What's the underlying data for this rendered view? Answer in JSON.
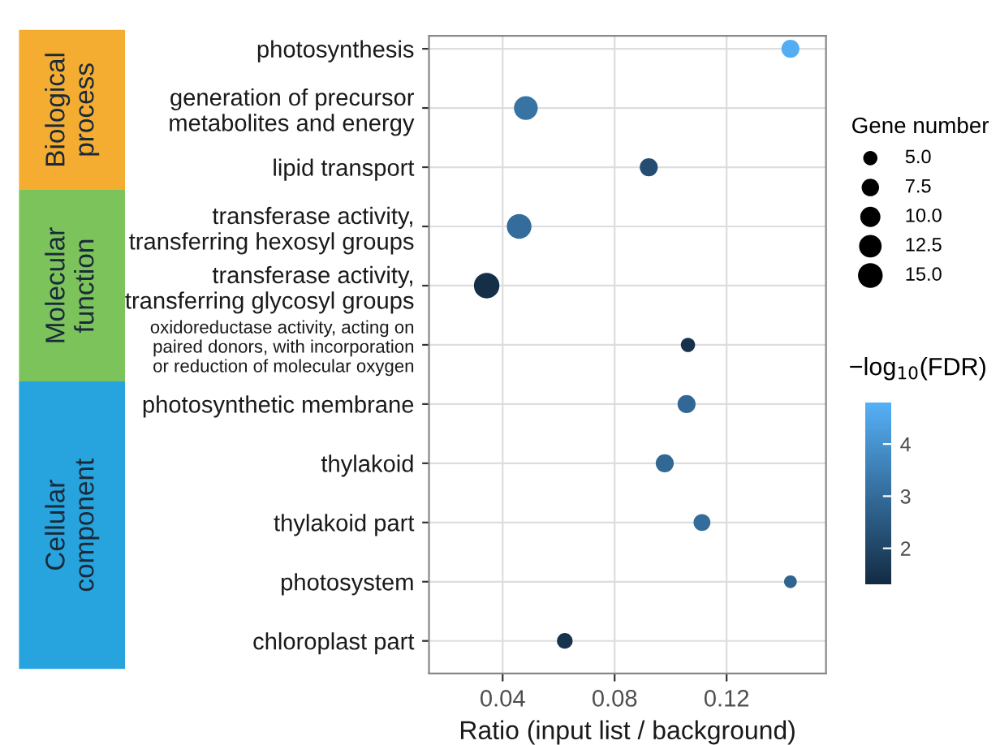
{
  "chart_data": {
    "type": "bubble",
    "orientation": "horizontal",
    "categories": [
      "photosynthesis",
      "generation of precursor\nmetabolites and energy",
      "lipid transport",
      "transferase activity,\ntransferring hexosyl groups",
      "transferase activity,\ntransferring glycosyl groups",
      "oxidoreductase activity, acting on\npaired donors, with incorporation\nor reduction of molecular oxygen",
      "photosynthetic membrane",
      "thylakoid",
      "thylakoid part",
      "photosystem",
      "chloroplast part"
    ],
    "values": [
      0.1428,
      0.0483,
      0.0922,
      0.0459,
      0.0343,
      0.1062,
      0.1057,
      0.0979,
      0.1112,
      0.1428,
      0.0622
    ],
    "sizes": [
      8,
      14,
      8,
      15,
      16,
      5,
      8,
      8,
      7,
      4,
      6
    ],
    "cvalues": [
      4.7,
      3.2,
      2.2,
      3.0,
      1.4,
      1.5,
      2.9,
      2.9,
      3.0,
      2.8,
      1.5
    ],
    "size_legend": [
      {
        "value": 5,
        "label": "5.0"
      },
      {
        "value": 7.5,
        "label": "7.5"
      },
      {
        "value": 10,
        "label": "10.0"
      },
      {
        "value": 12.5,
        "label": "12.5"
      },
      {
        "value": 15,
        "label": "15.0"
      }
    ],
    "legend_title": "Gene number",
    "clabel": "−log$_{10}$(FDR)",
    "clim": [
      1.3,
      4.8
    ],
    "cticks": [
      2,
      3,
      4
    ],
    "xlabel": "Ratio (input list / background)",
    "xlim": [
      0.0137,
      0.1555
    ],
    "xticks": [
      0.04,
      0.08,
      0.12
    ],
    "grid": true,
    "annotations": [
      "Biological\nprocess",
      "Molecular\nfunction",
      "Cellular\ncomponent"
    ]
  }
}
